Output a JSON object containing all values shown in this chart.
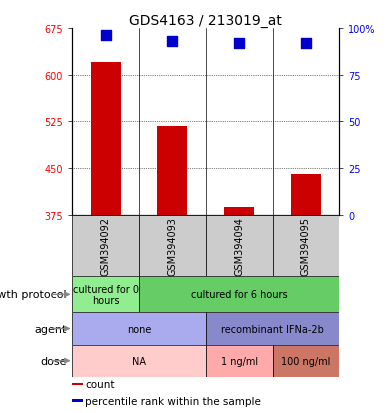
{
  "title": "GDS4163 / 213019_at",
  "samples": [
    "GSM394092",
    "GSM394093",
    "GSM394094",
    "GSM394095"
  ],
  "bar_values": [
    620,
    517,
    388,
    440
  ],
  "percentile_values": [
    96,
    93,
    92,
    92
  ],
  "ylim_left": [
    375,
    675
  ],
  "ylim_right": [
    0,
    100
  ],
  "yticks_left": [
    375,
    450,
    525,
    600,
    675
  ],
  "yticks_right": [
    0,
    25,
    50,
    75,
    100
  ],
  "bar_color": "#cc0000",
  "dot_color": "#0000cc",
  "bar_width": 0.45,
  "dot_size": 55,
  "grid_lines": [
    450,
    525,
    600
  ],
  "sample_bg": "#cccccc",
  "metadata_rows": [
    {
      "label": "growth protocol",
      "cells": [
        {
          "text": "cultured for 0\nhours",
          "span": 1,
          "color": "#90ee90"
        },
        {
          "text": "cultured for 6 hours",
          "span": 3,
          "color": "#66cc66"
        }
      ]
    },
    {
      "label": "agent",
      "cells": [
        {
          "text": "none",
          "span": 2,
          "color": "#aaaaee"
        },
        {
          "text": "recombinant IFNa-2b",
          "span": 2,
          "color": "#8888cc"
        }
      ]
    },
    {
      "label": "dose",
      "cells": [
        {
          "text": "NA",
          "span": 2,
          "color": "#ffcccc"
        },
        {
          "text": "1 ng/ml",
          "span": 1,
          "color": "#ffaaaa"
        },
        {
          "text": "100 ng/ml",
          "span": 1,
          "color": "#cc7766"
        }
      ]
    }
  ],
  "legend_items": [
    {
      "color": "#cc0000",
      "label": "count"
    },
    {
      "color": "#0000cc",
      "label": "percentile rank within the sample"
    }
  ],
  "title_fontsize": 10,
  "tick_fontsize": 7,
  "label_fontsize": 8,
  "meta_fontsize": 7,
  "sample_fontsize": 7
}
